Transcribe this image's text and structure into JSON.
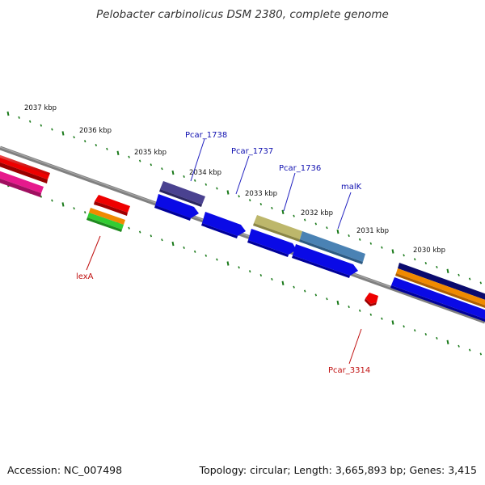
{
  "title": "Pelobacter carbinolicus DSM 2380, complete genome",
  "footer": {
    "accession_label": "Accession:",
    "accession": "NC_007498",
    "topology_label": "Topology:",
    "topology": "circular",
    "length_label": "Length:",
    "length": "3,665,893 bp",
    "genes_label": "Genes:",
    "genes": "3,415"
  },
  "kbp_labels": [
    "2037 kbp",
    "2036 kbp",
    "2035 kbp",
    "2034 kbp",
    "2033 kbp",
    "2032 kbp",
    "2031 kbp",
    "2030 kbp"
  ],
  "gene_labels": {
    "pcar_1738": "Pcar_1738",
    "pcar_1737": "Pcar_1737",
    "pcar_1736": "Pcar_1736",
    "malk": "malK",
    "lexa": "lexA",
    "pcar_3314": "Pcar_3314"
  },
  "colors": {
    "backbone": "#808080",
    "ticks": "#1a7a1a",
    "label_blue": "#1010b0",
    "label_red": "#c01010",
    "gene_blue": "#0a0ae6",
    "gene_red": "#ee0000",
    "gene_magenta": "#e6198c",
    "gene_orange": "#f08a00",
    "gene_green": "#33cc33",
    "gene_slate": "#4a4290",
    "gene_khaki": "#bdb76b",
    "gene_steel": "#4a82b4",
    "gene_navy": "#0a0a6e"
  }
}
